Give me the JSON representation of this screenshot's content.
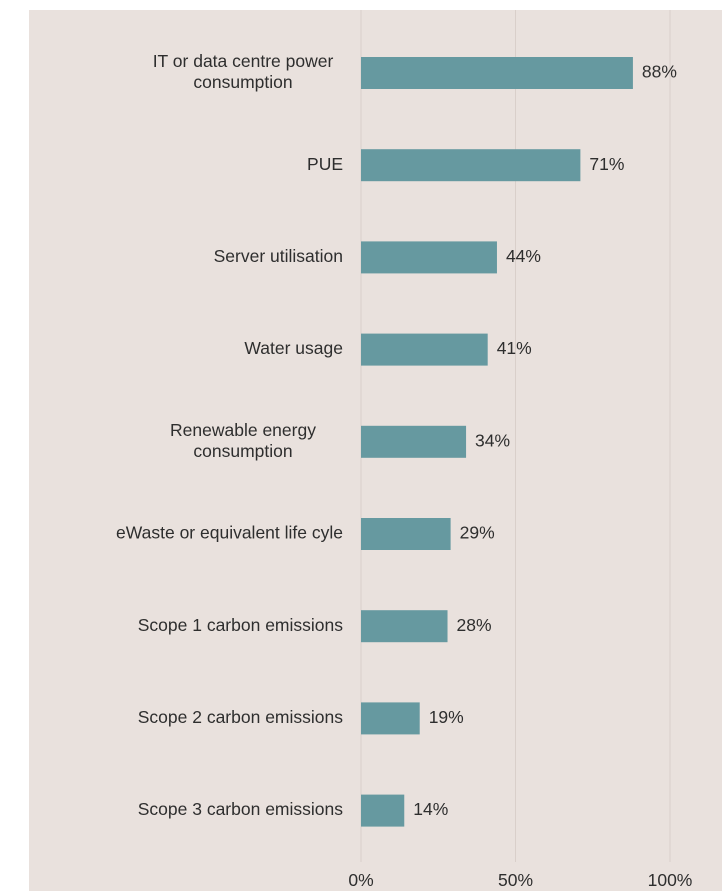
{
  "chart_data": {
    "type": "bar",
    "orientation": "horizontal",
    "categories": [
      [
        "IT or data centre power",
        "consumption"
      ],
      [
        "PUE"
      ],
      [
        "Server utilisation"
      ],
      [
        "Water usage"
      ],
      [
        "Renewable energy",
        "consumption"
      ],
      [
        "eWaste or equivalent life cyle"
      ],
      [
        "Scope 1 carbon emissions"
      ],
      [
        "Scope 2 carbon emissions"
      ],
      [
        "Scope 3 carbon emissions"
      ]
    ],
    "values": [
      88,
      71,
      44,
      41,
      34,
      29,
      28,
      19,
      14
    ],
    "value_labels": [
      "88%",
      "71%",
      "44%",
      "41%",
      "34%",
      "29%",
      "28%",
      "19%",
      "14%"
    ],
    "xlim": [
      0,
      100
    ],
    "xticks": [
      0,
      50,
      100
    ],
    "xtick_labels": [
      "0%",
      "50%",
      "100%"
    ],
    "title": "",
    "xlabel": "",
    "ylabel": "",
    "grid": true,
    "legend": "none",
    "colors": {
      "bar": "#6699a0",
      "background": "#e9e1dd",
      "gridline": "#d9cfca",
      "text": "#2e2e2e"
    }
  }
}
